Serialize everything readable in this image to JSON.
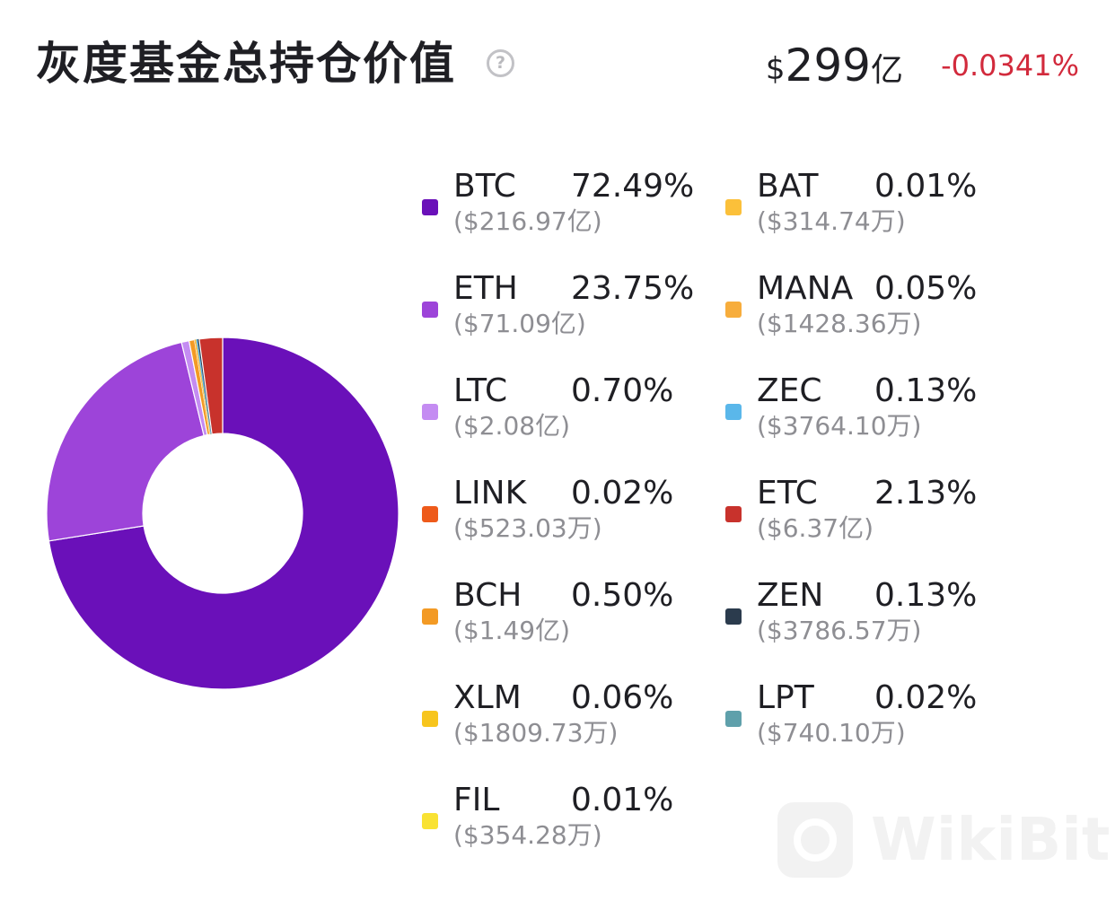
{
  "header": {
    "title": "灰度基金总持仓价值",
    "help_symbol": "?",
    "total_currency": "$",
    "total_value": "299",
    "total_unit": "亿",
    "change": "-0.0341%"
  },
  "watermark": {
    "text": "WikiBit"
  },
  "chart_data": {
    "type": "pie",
    "donut": true,
    "start_angle_deg": 0,
    "direction": "clockwise",
    "slices": [
      {
        "label": "BTC",
        "percent": 72.49,
        "percent_text": "72.49%",
        "value_text": "($216.97亿)",
        "color": "#6a10b9",
        "col": 0,
        "row": 0
      },
      {
        "label": "ETH",
        "percent": 23.75,
        "percent_text": "23.75%",
        "value_text": "($71.09亿)",
        "color": "#9d44d9",
        "col": 0,
        "row": 1
      },
      {
        "label": "LTC",
        "percent": 0.7,
        "percent_text": "0.70%",
        "value_text": "($2.08亿)",
        "color": "#c48cf2",
        "col": 0,
        "row": 2
      },
      {
        "label": "LINK",
        "percent": 0.02,
        "percent_text": "0.02%",
        "value_text": "($523.03万)",
        "color": "#ee5a1a",
        "col": 0,
        "row": 3
      },
      {
        "label": "BCH",
        "percent": 0.5,
        "percent_text": "0.50%",
        "value_text": "($1.49亿)",
        "color": "#f39a24",
        "col": 0,
        "row": 4
      },
      {
        "label": "XLM",
        "percent": 0.06,
        "percent_text": "0.06%",
        "value_text": "($1809.73万)",
        "color": "#f7c51d",
        "col": 0,
        "row": 5
      },
      {
        "label": "FIL",
        "percent": 0.01,
        "percent_text": "0.01%",
        "value_text": "($354.28万)",
        "color": "#f9e233",
        "col": 0,
        "row": 6
      },
      {
        "label": "BAT",
        "percent": 0.01,
        "percent_text": "0.01%",
        "value_text": "($314.74万)",
        "color": "#fbc03a",
        "col": 1,
        "row": 0
      },
      {
        "label": "MANA",
        "percent": 0.05,
        "percent_text": "0.05%",
        "value_text": "($1428.36万)",
        "color": "#f7ad3c",
        "col": 1,
        "row": 1
      },
      {
        "label": "ZEC",
        "percent": 0.13,
        "percent_text": "0.13%",
        "value_text": "($3764.10万)",
        "color": "#5ab7ea",
        "col": 1,
        "row": 2
      },
      {
        "label": "ETC",
        "percent": 2.13,
        "percent_text": "2.13%",
        "value_text": "($6.37亿)",
        "color": "#c8322c",
        "col": 1,
        "row": 3
      },
      {
        "label": "ZEN",
        "percent": 0.13,
        "percent_text": "0.13%",
        "value_text": "($3786.57万)",
        "color": "#2b3b4d",
        "col": 1,
        "row": 4
      },
      {
        "label": "LPT",
        "percent": 0.02,
        "percent_text": "0.02%",
        "value_text": "($740.10万)",
        "color": "#5fa0ab",
        "col": 1,
        "row": 5
      }
    ]
  }
}
